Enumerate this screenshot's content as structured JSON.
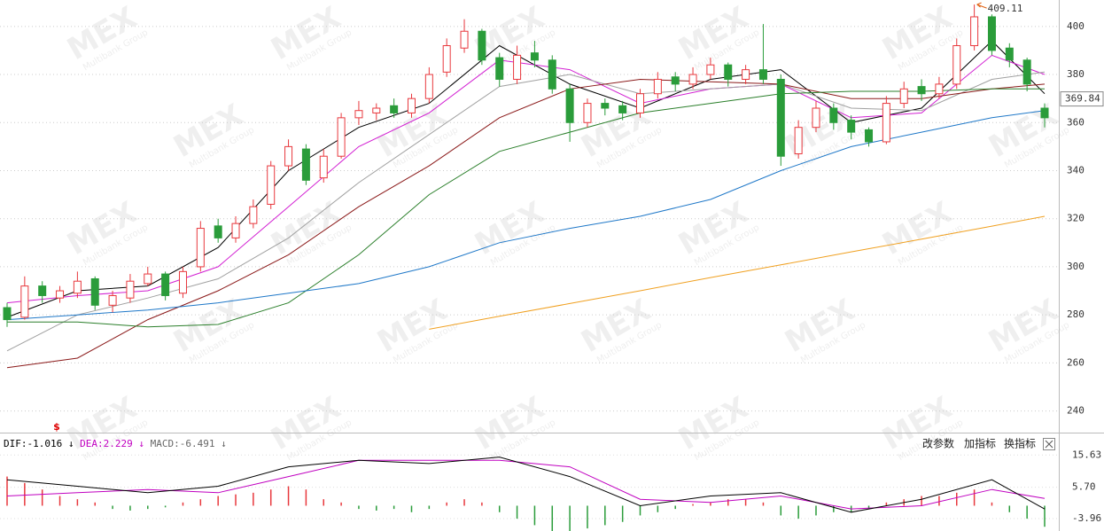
{
  "chart_data": {
    "type": "candlestick",
    "ylim": [
      231,
      411
    ],
    "yticks": [
      240,
      260,
      280,
      300,
      320,
      340,
      360,
      380,
      400
    ],
    "up_color": "#e8383d",
    "down_color": "#2a9c3a",
    "candles": [
      [
        283,
        285,
        275,
        278
      ],
      [
        279,
        296,
        278,
        292
      ],
      [
        292,
        294,
        285,
        288
      ],
      [
        287,
        292,
        285,
        290
      ],
      [
        289,
        298,
        287,
        294
      ],
      [
        295,
        296,
        282,
        284
      ],
      [
        284,
        290,
        281,
        288
      ],
      [
        287,
        297,
        285,
        294
      ],
      [
        293,
        300,
        292,
        297
      ],
      [
        297,
        298,
        286,
        288
      ],
      [
        289,
        300,
        287,
        298
      ],
      [
        300,
        319,
        298,
        316
      ],
      [
        317,
        320,
        310,
        312
      ],
      [
        312,
        321,
        310,
        318
      ],
      [
        318,
        328,
        316,
        325
      ],
      [
        326,
        344,
        324,
        342
      ],
      [
        342,
        353,
        340,
        350
      ],
      [
        349,
        351,
        334,
        336
      ],
      [
        337,
        349,
        335,
        346
      ],
      [
        346,
        364,
        345,
        362
      ],
      [
        362,
        369,
        359,
        365
      ],
      [
        364,
        368,
        361,
        366
      ],
      [
        367,
        370,
        362,
        364
      ],
      [
        364,
        372,
        362,
        370
      ],
      [
        370,
        383,
        368,
        380
      ],
      [
        381,
        395,
        379,
        392
      ],
      [
        391,
        403,
        389,
        398
      ],
      [
        398,
        399,
        384,
        386
      ],
      [
        387,
        389,
        375,
        378
      ],
      [
        378,
        392,
        376,
        388
      ],
      [
        389,
        394,
        383,
        386
      ],
      [
        386,
        388,
        372,
        374
      ],
      [
        374,
        376,
        352,
        360
      ],
      [
        360,
        370,
        358,
        368
      ],
      [
        368,
        370,
        363,
        366
      ],
      [
        367,
        369,
        361,
        364
      ],
      [
        364,
        374,
        362,
        372
      ],
      [
        372,
        381,
        370,
        378
      ],
      [
        379,
        381,
        373,
        376
      ],
      [
        376,
        383,
        374,
        380
      ],
      [
        380,
        387,
        378,
        384
      ],
      [
        384,
        385,
        375,
        378
      ],
      [
        378,
        384,
        376,
        382
      ],
      [
        382,
        401,
        376,
        378
      ],
      [
        378,
        380,
        342,
        346
      ],
      [
        347,
        361,
        345,
        358
      ],
      [
        358,
        369,
        356,
        366
      ],
      [
        366,
        368,
        357,
        360
      ],
      [
        361,
        363,
        353,
        356
      ],
      [
        357,
        358,
        350,
        352
      ],
      [
        352,
        371,
        351,
        368
      ],
      [
        368,
        377,
        366,
        374
      ],
      [
        375,
        378,
        369,
        372
      ],
      [
        372,
        379,
        370,
        376
      ],
      [
        376,
        395,
        374,
        392
      ],
      [
        392,
        409.11,
        390,
        404
      ],
      [
        404,
        405,
        388,
        390
      ],
      [
        391,
        393,
        383,
        386
      ],
      [
        386,
        387,
        373,
        376
      ],
      [
        366,
        368,
        358,
        362
      ]
    ],
    "ma_x": [
      0,
      4,
      8,
      12,
      16,
      20,
      24,
      28,
      32,
      36,
      40,
      44,
      48,
      52,
      56,
      59
    ],
    "lines": [
      {
        "color": "#000000",
        "values": [
          279,
          290,
          292,
          308,
          340,
          358,
          368,
          392,
          376,
          366,
          378,
          382,
          360,
          366,
          394,
          372
        ]
      },
      {
        "color": "#d21fd2",
        "values": [
          285,
          288,
          290,
          300,
          325,
          350,
          364,
          386,
          382,
          368,
          374,
          376,
          362,
          364,
          388,
          380
        ]
      },
      {
        "color": "#a0a0a0",
        "values": [
          265,
          280,
          287,
          295,
          312,
          335,
          355,
          375,
          380,
          372,
          374,
          376,
          366,
          365,
          378,
          381
        ]
      },
      {
        "color": "#8b1a1a",
        "values": [
          258,
          262,
          278,
          290,
          305,
          325,
          342,
          362,
          374,
          378,
          377,
          376,
          370,
          370,
          374,
          376
        ]
      },
      {
        "color": "#2b7f2b",
        "values": [
          277,
          277,
          275,
          276,
          285,
          305,
          330,
          348,
          356,
          364,
          368,
          372,
          373,
          373,
          374,
          374
        ]
      },
      {
        "color": "#1f78c8",
        "values": [
          278,
          280,
          282,
          285,
          289,
          293,
          300,
          310,
          316,
          321,
          328,
          340,
          350,
          356,
          362,
          365
        ]
      },
      {
        "color": "#f0a020",
        "values": [
          null,
          null,
          null,
          null,
          null,
          null,
          274,
          279.4,
          284.7,
          290,
          295.5,
          300.8,
          306.2,
          311.5,
          316.9,
          321
        ]
      }
    ],
    "last_price": 369.84,
    "signal_marker": "$",
    "macd": {
      "ylim": [
        -7.8,
        22
      ],
      "yticks": [
        15.63,
        {
          "value": 5.7,
          "label": "5.70"
        },
        -3.96
      ],
      "arrow": "↓",
      "histogram": [
        9,
        7,
        5,
        3,
        2,
        1,
        -1,
        -1.5,
        -1,
        -0.5,
        1,
        2,
        3,
        3.5,
        4,
        5,
        6,
        5,
        2,
        1,
        -1,
        -1.5,
        -1,
        -2,
        -1,
        1,
        2,
        1,
        -2,
        -4,
        -6,
        -8,
        -8,
        -7,
        -6,
        -5,
        -3,
        -2,
        -1,
        0.5,
        1,
        2,
        2,
        1,
        -3,
        -4,
        -3,
        -2,
        -2,
        -1,
        1,
        2,
        3,
        3,
        4,
        5,
        1,
        -2,
        -4,
        -6.491
      ],
      "macd_label": "MACD:",
      "dif": {
        "label": "DIF:",
        "color": "#000000",
        "values": [
          8,
          6,
          4,
          6,
          12,
          14,
          13,
          15,
          9,
          0,
          3,
          4,
          -2,
          2,
          8,
          -1.016
        ]
      },
      "dea": {
        "label": "DEA:",
        "color": "#c000c0",
        "values": [
          3,
          4,
          5,
          4,
          9,
          14,
          14,
          14,
          12,
          2,
          1,
          3,
          -1,
          0,
          5,
          2.229
        ]
      }
    }
  },
  "toolbar": [
    "改参数",
    "加指标",
    "换指标"
  ],
  "watermark": {
    "logo": "MEX",
    "text": "Multibank Group"
  }
}
